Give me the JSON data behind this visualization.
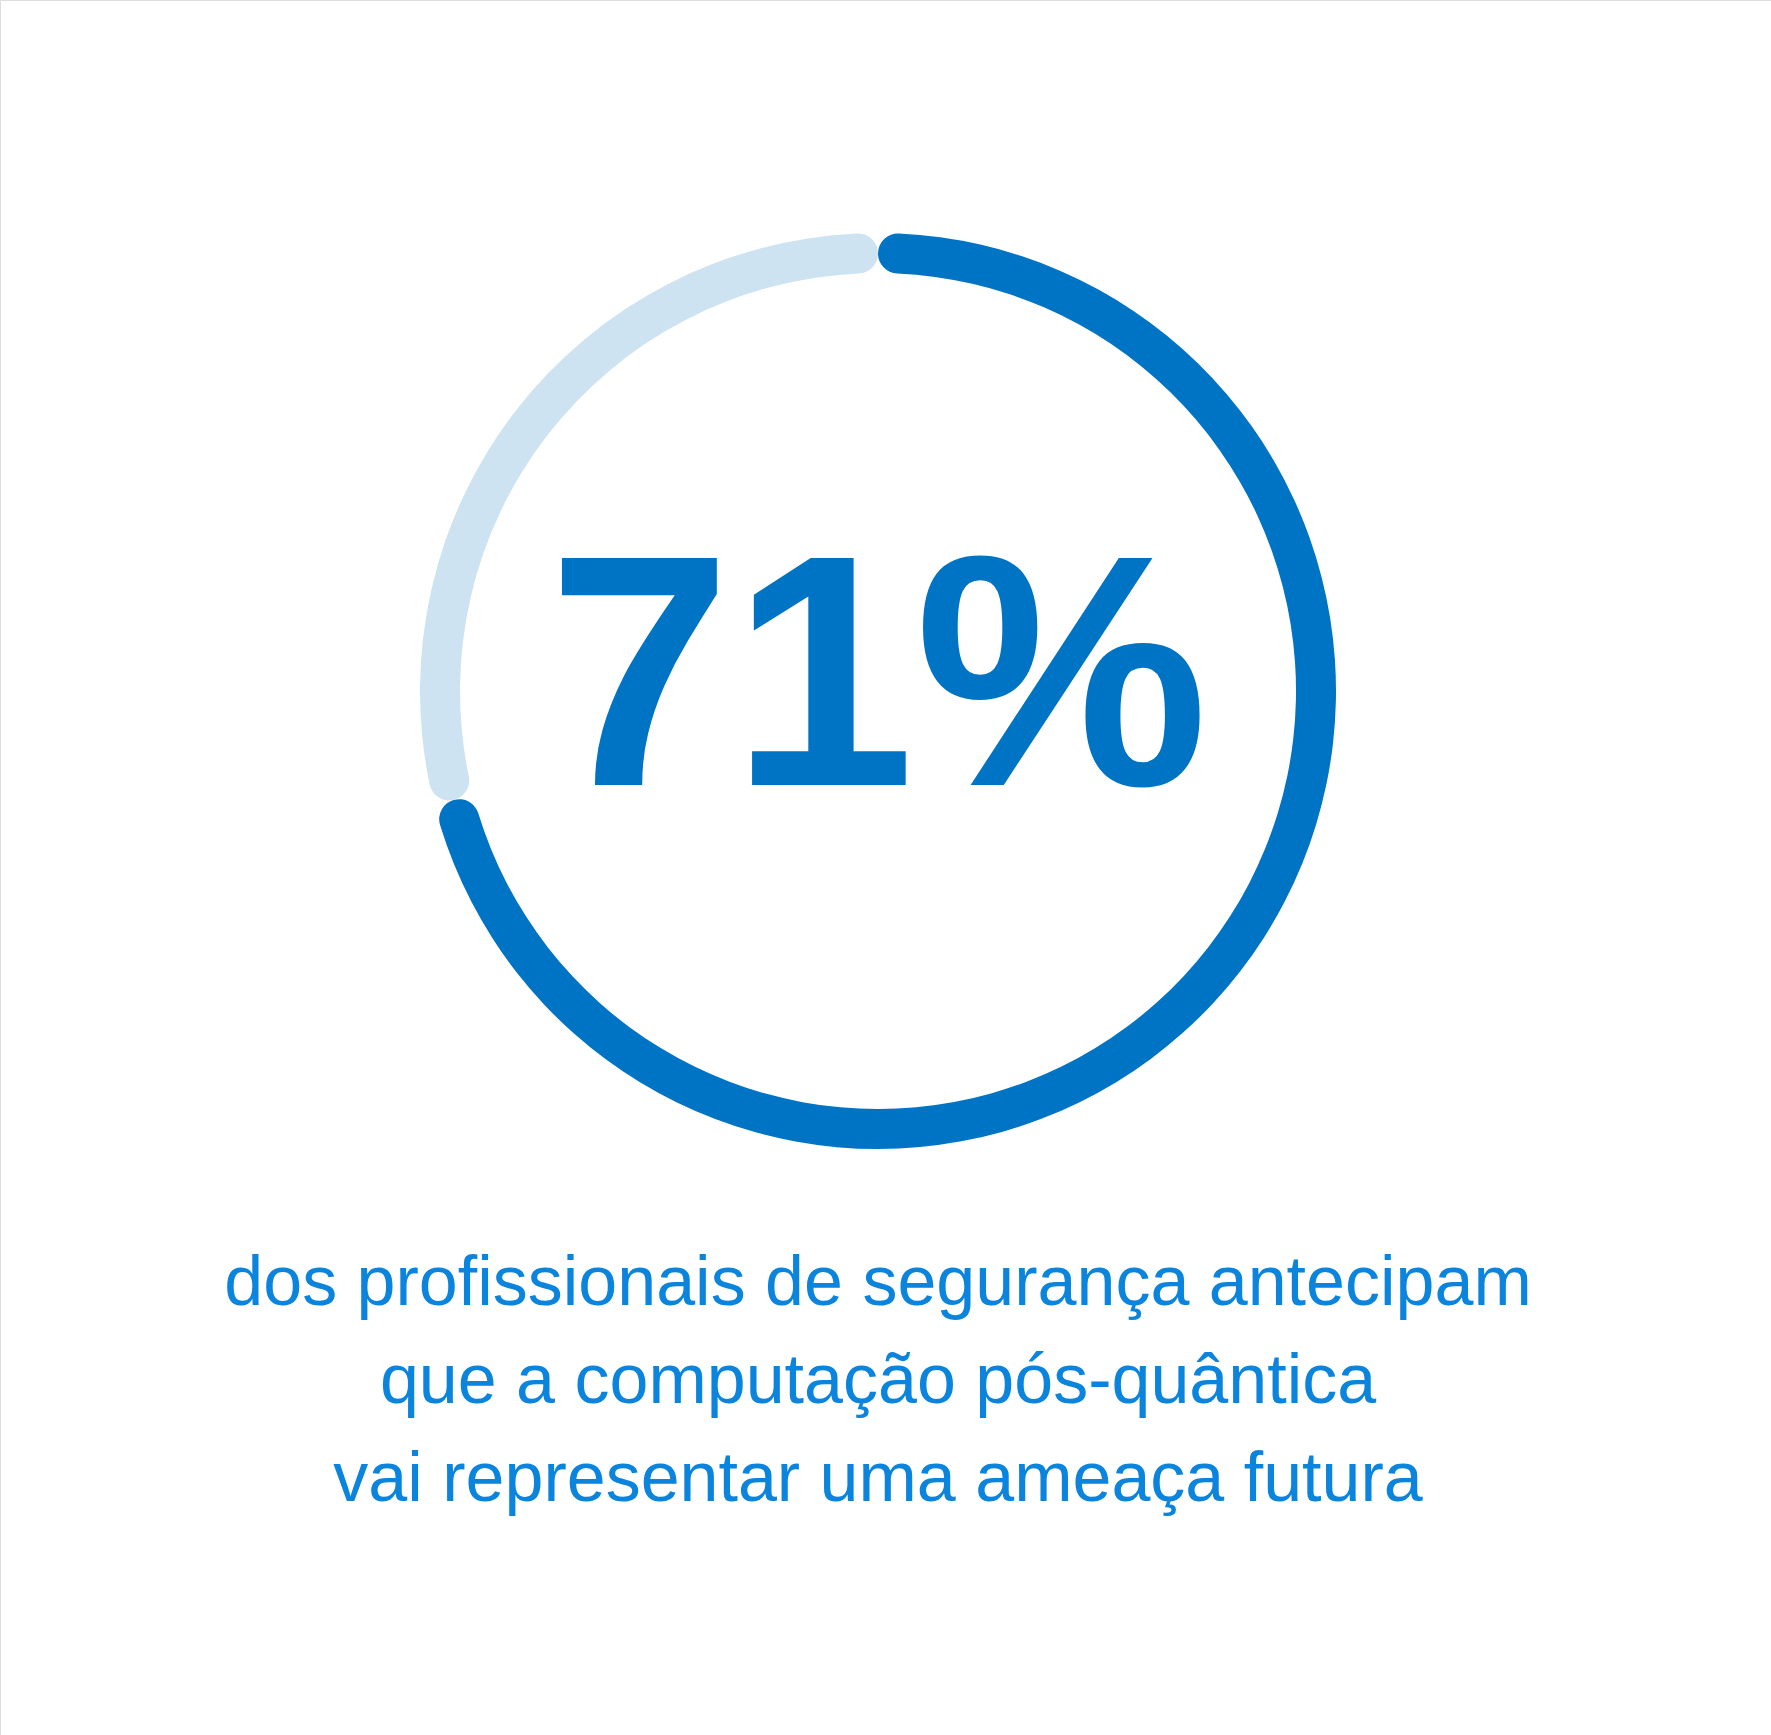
{
  "chart_data": {
    "type": "donut",
    "categories": [
      null,
      null
    ],
    "values": [
      71,
      29
    ],
    "colors": [
      "#0074c4",
      "#cde3f2"
    ],
    "value_labels": [
      "71%",
      null
    ],
    "annotations": [
      "dos profissionais de segurança antecipam\nque a computação pós-quântica\nvai representar uma ameaça futura"
    ]
  }
}
